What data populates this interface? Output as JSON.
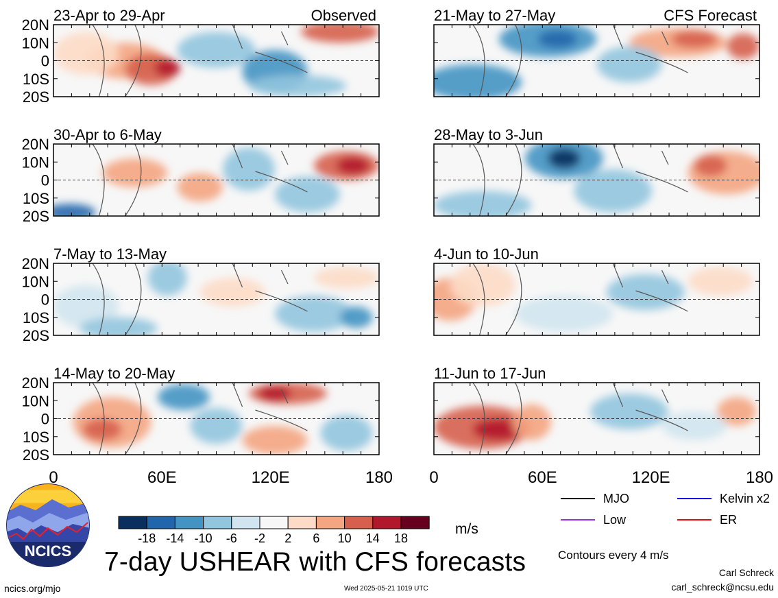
{
  "title": "7-day USHEAR with CFS forecasts",
  "unit": "m/s",
  "contour_note": "Contours every 4 m/s",
  "author": "Carl Schreck",
  "email": "carl_schreck@ncsu.edu",
  "site": "ncics.org/mjo",
  "timestamp": "Wed 2025-05-21 1019 UTC",
  "logo_text": "NCICS",
  "legend": [
    {
      "label": "MJO",
      "color": "#000000"
    },
    {
      "label": "Kelvin x2",
      "color": "#1010e0"
    },
    {
      "label": "Low",
      "color": "#9a30e0"
    },
    {
      "label": "ER",
      "color": "#e01010"
    }
  ],
  "colorbar": {
    "ticks": [
      "-18",
      "-14",
      "-10",
      "-6",
      "-2",
      "2",
      "6",
      "10",
      "14",
      "18"
    ],
    "colors": [
      "#0a2f5e",
      "#2166ac",
      "#4393c3",
      "#92c5de",
      "#d1e5f0",
      "#f7f7f7",
      "#fddbc7",
      "#f4a582",
      "#d6604d",
      "#b2182b",
      "#67001f"
    ]
  },
  "chart_data": [
    {
      "type": "heatmap",
      "title": "23-Apr to 29-Apr",
      "label": "Observed",
      "xlim": [
        0,
        180
      ],
      "ylim": [
        -20,
        20
      ],
      "x_ticks": [
        "0",
        "60E",
        "120E",
        "180"
      ],
      "y_ticks": [
        "20N",
        "10N",
        "0",
        "10S",
        "20S"
      ]
    },
    {
      "type": "heatmap",
      "title": "30-Apr to 6-May",
      "xlim": [
        0,
        180
      ],
      "ylim": [
        -20,
        20
      ],
      "x_ticks": [
        "0",
        "60E",
        "120E",
        "180"
      ],
      "y_ticks": [
        "20N",
        "10N",
        "0",
        "10S",
        "20S"
      ]
    },
    {
      "type": "heatmap",
      "title": "7-May to 13-May",
      "xlim": [
        0,
        180
      ],
      "ylim": [
        -20,
        20
      ],
      "x_ticks": [
        "0",
        "60E",
        "120E",
        "180"
      ],
      "y_ticks": [
        "20N",
        "10N",
        "0",
        "10S",
        "20S"
      ]
    },
    {
      "type": "heatmap",
      "title": "14-May to 20-May",
      "xlim": [
        0,
        180
      ],
      "ylim": [
        -20,
        20
      ],
      "x_ticks": [
        "0",
        "60E",
        "120E",
        "180"
      ],
      "y_ticks": [
        "20N",
        "10N",
        "0",
        "10S",
        "20S"
      ]
    },
    {
      "type": "heatmap",
      "title": "21-May to 27-May",
      "label": "CFS Forecast",
      "xlim": [
        0,
        180
      ],
      "ylim": [
        -20,
        20
      ],
      "x_ticks": [
        "0",
        "60E",
        "120E",
        "180"
      ],
      "y_ticks": []
    },
    {
      "type": "heatmap",
      "title": "28-May to 3-Jun",
      "xlim": [
        0,
        180
      ],
      "ylim": [
        -20,
        20
      ],
      "x_ticks": [
        "0",
        "60E",
        "120E",
        "180"
      ],
      "y_ticks": []
    },
    {
      "type": "heatmap",
      "title": "4-Jun to 10-Jun",
      "xlim": [
        0,
        180
      ],
      "ylim": [
        -20,
        20
      ],
      "x_ticks": [
        "0",
        "60E",
        "120E",
        "180"
      ],
      "y_ticks": []
    },
    {
      "type": "heatmap",
      "title": "11-Jun to 17-Jun",
      "xlim": [
        0,
        180
      ],
      "ylim": [
        -20,
        20
      ],
      "x_ticks": [
        "0",
        "60E",
        "120E",
        "180"
      ],
      "y_ticks": []
    }
  ]
}
